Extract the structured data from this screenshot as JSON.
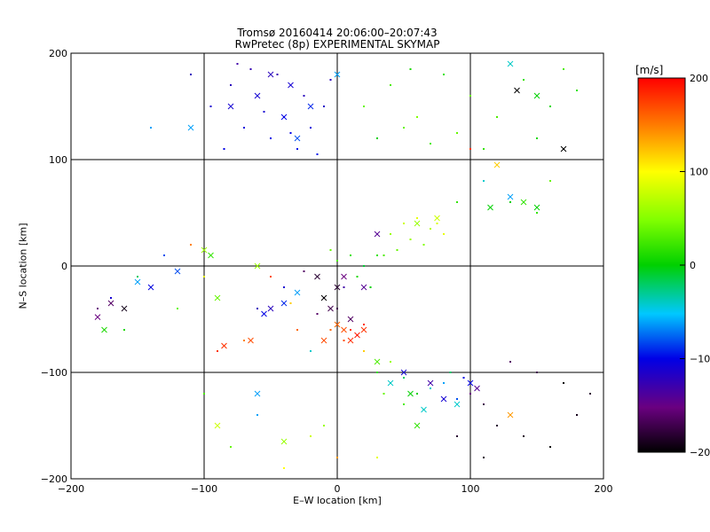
{
  "title_line1": "Tromsø 20160414 20:06:00–20:07:43",
  "title_line2": "RwPretec (8p) EXPERIMENTAL SKYMAP",
  "chart_data": {
    "type": "scatter",
    "xlabel": "E–W location [km]",
    "ylabel": "N–S location [km]",
    "xlim": [
      -200,
      200
    ],
    "ylim": [
      -200,
      200
    ],
    "xticks": [
      -200,
      -100,
      0,
      100,
      200
    ],
    "yticks": [
      -200,
      -100,
      0,
      100,
      200
    ],
    "grid": true,
    "colorbar": {
      "label": "[m/s]",
      "range": [
        -200,
        200
      ],
      "ticks": [
        200,
        100,
        0,
        -100,
        -200
      ],
      "colormap": "black-purple-blue-cyan-green-yellow-orange-red"
    },
    "series": [
      {
        "marker": "dot",
        "points": [
          [
            -95,
            150,
            -110
          ],
          [
            -80,
            170,
            -120
          ],
          [
            -70,
            130,
            -105
          ],
          [
            -60,
            160,
            -115
          ],
          [
            -50,
            120,
            -100
          ],
          [
            -45,
            180,
            -125
          ],
          [
            -40,
            140,
            -110
          ],
          [
            -30,
            110,
            -95
          ],
          [
            -25,
            160,
            -120
          ],
          [
            -20,
            130,
            -105
          ],
          [
            -10,
            150,
            -115
          ],
          [
            -5,
            175,
            -120
          ],
          [
            -85,
            110,
            -100
          ],
          [
            -65,
            185,
            -125
          ],
          [
            -35,
            125,
            -100
          ],
          [
            -15,
            105,
            -95
          ],
          [
            -55,
            145,
            -110
          ],
          [
            -75,
            190,
            -130
          ],
          [
            20,
            150,
            40
          ],
          [
            40,
            170,
            30
          ],
          [
            60,
            140,
            50
          ],
          [
            80,
            180,
            20
          ],
          [
            100,
            160,
            40
          ],
          [
            120,
            140,
            30
          ],
          [
            140,
            175,
            20
          ],
          [
            160,
            150,
            10
          ],
          [
            180,
            165,
            20
          ],
          [
            30,
            120,
            0
          ],
          [
            50,
            130,
            40
          ],
          [
            70,
            115,
            30
          ],
          [
            90,
            125,
            40
          ],
          [
            110,
            110,
            20
          ],
          [
            130,
            190,
            30
          ],
          [
            150,
            120,
            10
          ],
          [
            170,
            185,
            30
          ],
          [
            55,
            185,
            10
          ],
          [
            40,
            30,
            60
          ],
          [
            50,
            40,
            80
          ],
          [
            60,
            45,
            90
          ],
          [
            70,
            35,
            70
          ],
          [
            75,
            40,
            85
          ],
          [
            55,
            25,
            60
          ],
          [
            45,
            15,
            40
          ],
          [
            65,
            20,
            50
          ],
          [
            80,
            30,
            90
          ],
          [
            35,
            10,
            30
          ],
          [
            -10,
            -30,
            -150
          ],
          [
            0,
            -40,
            -170
          ],
          [
            10,
            -50,
            -160
          ],
          [
            5,
            -20,
            -130
          ],
          [
            -5,
            -60,
            160
          ],
          [
            0,
            -55,
            170
          ],
          [
            10,
            -60,
            180
          ],
          [
            15,
            -65,
            190
          ],
          [
            20,
            -55,
            180
          ],
          [
            5,
            -70,
            170
          ],
          [
            -15,
            -45,
            -160
          ],
          [
            15,
            -10,
            10
          ],
          [
            20,
            0,
            -10
          ],
          [
            10,
            10,
            20
          ],
          [
            25,
            -20,
            0
          ],
          [
            0,
            5,
            30
          ],
          [
            -5,
            15,
            40
          ],
          [
            30,
            10,
            20
          ],
          [
            30,
            -100,
            20
          ],
          [
            40,
            -110,
            10
          ],
          [
            50,
            -105,
            -20
          ],
          [
            60,
            -120,
            0
          ],
          [
            70,
            -115,
            -40
          ],
          [
            80,
            -110,
            -60
          ],
          [
            90,
            -125,
            -80
          ],
          [
            100,
            -120,
            -150
          ],
          [
            110,
            -130,
            -170
          ],
          [
            50,
            -130,
            30
          ],
          [
            65,
            -135,
            10
          ],
          [
            85,
            -100,
            -20
          ],
          [
            40,
            -90,
            60
          ],
          [
            20,
            -80,
            120
          ],
          [
            35,
            -120,
            40
          ],
          [
            95,
            -105,
            -100
          ],
          [
            120,
            -150,
            -180
          ],
          [
            140,
            -160,
            -190
          ],
          [
            160,
            -170,
            -200
          ],
          [
            180,
            -140,
            -190
          ],
          [
            190,
            -120,
            -180
          ],
          [
            150,
            -100,
            -170
          ],
          [
            130,
            -90,
            -160
          ],
          [
            170,
            -110,
            -200
          ],
          [
            110,
            -180,
            -190
          ],
          [
            90,
            -160,
            -180
          ],
          [
            -170,
            -30,
            -110
          ],
          [
            -150,
            -10,
            -20
          ],
          [
            -140,
            -20,
            20
          ],
          [
            -160,
            -60,
            10
          ],
          [
            -120,
            -40,
            40
          ],
          [
            -100,
            -10,
            90
          ],
          [
            -180,
            -40,
            -150
          ],
          [
            -130,
            10,
            -80
          ],
          [
            -110,
            20,
            150
          ],
          [
            -60,
            -40,
            -120
          ],
          [
            -40,
            -20,
            -110
          ],
          [
            -30,
            -60,
            160
          ],
          [
            -50,
            -10,
            170
          ],
          [
            -20,
            -80,
            -40
          ],
          [
            -70,
            -70,
            150
          ],
          [
            -90,
            -80,
            180
          ],
          [
            -25,
            -5,
            -160
          ],
          [
            -35,
            -35,
            120
          ],
          [
            -20,
            -160,
            80
          ],
          [
            0,
            -180,
            140
          ],
          [
            -10,
            -150,
            60
          ],
          [
            -40,
            -190,
            100
          ],
          [
            -80,
            -170,
            40
          ],
          [
            -60,
            -140,
            -60
          ],
          [
            30,
            -180,
            90
          ],
          [
            -100,
            -120,
            30
          ],
          [
            100,
            110,
            180
          ],
          [
            90,
            60,
            20
          ],
          [
            110,
            80,
            -40
          ],
          [
            130,
            60,
            0
          ],
          [
            150,
            50,
            20
          ],
          [
            160,
            80,
            40
          ],
          [
            170,
            110,
            -190
          ],
          [
            -140,
            130,
            -60
          ],
          [
            -110,
            180,
            -120
          ]
        ]
      },
      {
        "marker": "x",
        "points": [
          [
            -50,
            180,
            -120
          ],
          [
            -35,
            170,
            -110
          ],
          [
            -60,
            160,
            -110
          ],
          [
            -40,
            140,
            -100
          ],
          [
            -20,
            150,
            -90
          ],
          [
            -30,
            120,
            -80
          ],
          [
            -80,
            150,
            -110
          ],
          [
            -110,
            130,
            -60
          ],
          [
            0,
            180,
            -60
          ],
          [
            130,
            190,
            -40
          ],
          [
            135,
            165,
            -200
          ],
          [
            150,
            160,
            0
          ],
          [
            170,
            110,
            -200
          ],
          [
            120,
            95,
            120
          ],
          [
            115,
            55,
            0
          ],
          [
            140,
            60,
            20
          ],
          [
            150,
            55,
            0
          ],
          [
            130,
            65,
            -60
          ],
          [
            30,
            30,
            -140
          ],
          [
            60,
            40,
            60
          ],
          [
            75,
            45,
            80
          ],
          [
            -10,
            -30,
            -200
          ],
          [
            0,
            -20,
            -180
          ],
          [
            -5,
            -40,
            -170
          ],
          [
            10,
            -50,
            -160
          ],
          [
            5,
            -60,
            170
          ],
          [
            10,
            -70,
            180
          ],
          [
            15,
            -65,
            190
          ],
          [
            20,
            -60,
            180
          ],
          [
            0,
            -55,
            160
          ],
          [
            -10,
            -70,
            170
          ],
          [
            5,
            -10,
            -150
          ],
          [
            20,
            -20,
            -140
          ],
          [
            -15,
            -10,
            -180
          ],
          [
            -180,
            -48,
            -150
          ],
          [
            -170,
            -35,
            -160
          ],
          [
            -150,
            -15,
            -60
          ],
          [
            -160,
            -40,
            -190
          ],
          [
            -140,
            -20,
            -100
          ],
          [
            -175,
            -60,
            10
          ],
          [
            -120,
            -5,
            -80
          ],
          [
            -100,
            15,
            60
          ],
          [
            -95,
            10,
            20
          ],
          [
            -90,
            -30,
            40
          ],
          [
            -55,
            -45,
            -100
          ],
          [
            -50,
            -40,
            -120
          ],
          [
            -40,
            -35,
            -90
          ],
          [
            -30,
            -25,
            -60
          ],
          [
            -65,
            -70,
            170
          ],
          [
            -85,
            -75,
            180
          ],
          [
            -60,
            0,
            60
          ],
          [
            30,
            -90,
            30
          ],
          [
            50,
            -100,
            -110
          ],
          [
            55,
            -120,
            0
          ],
          [
            70,
            -110,
            -130
          ],
          [
            80,
            -125,
            -110
          ],
          [
            90,
            -130,
            -40
          ],
          [
            100,
            -110,
            -100
          ],
          [
            40,
            -110,
            -40
          ],
          [
            65,
            -135,
            -40
          ],
          [
            105,
            -115,
            -140
          ],
          [
            130,
            -140,
            140
          ],
          [
            -90,
            -150,
            80
          ],
          [
            -60,
            -120,
            -60
          ],
          [
            -40,
            -165,
            60
          ],
          [
            60,
            -150,
            20
          ]
        ]
      }
    ]
  }
}
